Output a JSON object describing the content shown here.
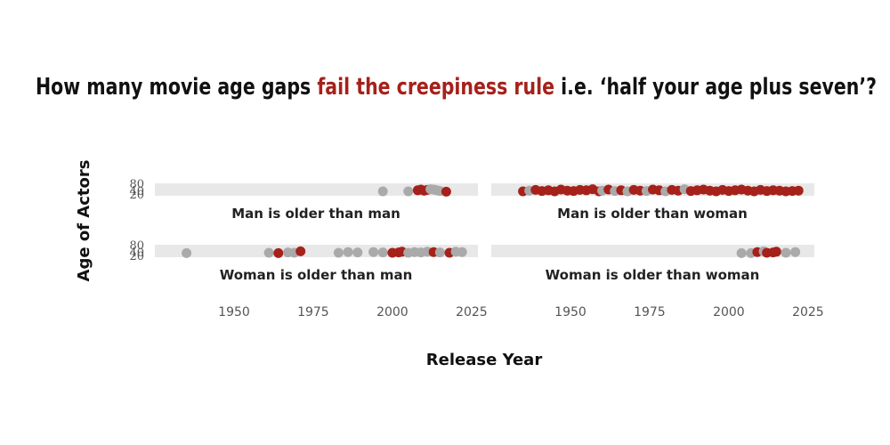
{
  "chart_data": {
    "type": "scatter",
    "title_parts": [
      {
        "text": "How many movie age gaps ",
        "highlight": false
      },
      {
        "text": "fail the creepiness rule",
        "highlight": true
      },
      {
        "text": " i.e. ‘half your age plus seven’?",
        "highlight": false
      }
    ],
    "xlabel": "Release  Year",
    "ylabel": "Age of Actors",
    "xlim": [
      1925,
      2027
    ],
    "ylim": [
      15,
      85
    ],
    "x_ticks": [
      1950,
      1975,
      2000,
      2025
    ],
    "y_ticks": [
      20,
      40,
      80
    ],
    "grid": false,
    "colors": {
      "fail": "#a5211a",
      "pass": "#aaaaaa",
      "panel": "#e8e8e8",
      "highlight": "#a5211a"
    },
    "panels": [
      {
        "label": "Man is older than man",
        "points": [
          {
            "x": 1997,
            "y": 40,
            "fail": false
          },
          {
            "x": 2005,
            "y": 40,
            "fail": false
          },
          {
            "x": 2008,
            "y": 46,
            "fail": true
          },
          {
            "x": 2009,
            "y": 50,
            "fail": true
          },
          {
            "x": 2010,
            "y": 44,
            "fail": true
          },
          {
            "x": 2011,
            "y": 48,
            "fail": true
          },
          {
            "x": 2012,
            "y": 52,
            "fail": false
          },
          {
            "x": 2013,
            "y": 50,
            "fail": false
          },
          {
            "x": 2014,
            "y": 46,
            "fail": false
          },
          {
            "x": 2015,
            "y": 42,
            "fail": false
          },
          {
            "x": 2017,
            "y": 38,
            "fail": true
          }
        ]
      },
      {
        "label": "Man is older than woman",
        "points": [
          {
            "x": 1935,
            "y": 40,
            "fail": true
          },
          {
            "x": 1937,
            "y": 44,
            "fail": false
          },
          {
            "x": 1939,
            "y": 48,
            "fail": true
          },
          {
            "x": 1941,
            "y": 42,
            "fail": true
          },
          {
            "x": 1943,
            "y": 46,
            "fail": true
          },
          {
            "x": 1945,
            "y": 40,
            "fail": true
          },
          {
            "x": 1947,
            "y": 50,
            "fail": true
          },
          {
            "x": 1949,
            "y": 44,
            "fail": true
          },
          {
            "x": 1951,
            "y": 42,
            "fail": true
          },
          {
            "x": 1953,
            "y": 48,
            "fail": true
          },
          {
            "x": 1955,
            "y": 46,
            "fail": true
          },
          {
            "x": 1957,
            "y": 52,
            "fail": true
          },
          {
            "x": 1959,
            "y": 40,
            "fail": true
          },
          {
            "x": 1960,
            "y": 44,
            "fail": false
          },
          {
            "x": 1962,
            "y": 50,
            "fail": true
          },
          {
            "x": 1964,
            "y": 42,
            "fail": false
          },
          {
            "x": 1966,
            "y": 46,
            "fail": true
          },
          {
            "x": 1968,
            "y": 40,
            "fail": false
          },
          {
            "x": 1970,
            "y": 48,
            "fail": true
          },
          {
            "x": 1972,
            "y": 44,
            "fail": true
          },
          {
            "x": 1974,
            "y": 42,
            "fail": false
          },
          {
            "x": 1976,
            "y": 50,
            "fail": true
          },
          {
            "x": 1978,
            "y": 46,
            "fail": true
          },
          {
            "x": 1980,
            "y": 40,
            "fail": false
          },
          {
            "x": 1982,
            "y": 48,
            "fail": true
          },
          {
            "x": 1984,
            "y": 44,
            "fail": true
          },
          {
            "x": 1986,
            "y": 52,
            "fail": false
          },
          {
            "x": 1988,
            "y": 42,
            "fail": true
          },
          {
            "x": 1990,
            "y": 46,
            "fail": true
          },
          {
            "x": 1992,
            "y": 50,
            "fail": true
          },
          {
            "x": 1994,
            "y": 44,
            "fail": true
          },
          {
            "x": 1996,
            "y": 40,
            "fail": true
          },
          {
            "x": 1998,
            "y": 48,
            "fail": true
          },
          {
            "x": 2000,
            "y": 42,
            "fail": true
          },
          {
            "x": 2002,
            "y": 46,
            "fail": true
          },
          {
            "x": 2004,
            "y": 50,
            "fail": true
          },
          {
            "x": 2006,
            "y": 44,
            "fail": true
          },
          {
            "x": 2008,
            "y": 40,
            "fail": true
          },
          {
            "x": 2010,
            "y": 48,
            "fail": true
          },
          {
            "x": 2012,
            "y": 42,
            "fail": true
          },
          {
            "x": 2014,
            "y": 46,
            "fail": true
          },
          {
            "x": 2016,
            "y": 44,
            "fail": true
          },
          {
            "x": 2018,
            "y": 40,
            "fail": true
          },
          {
            "x": 2020,
            "y": 42,
            "fail": true
          },
          {
            "x": 2022,
            "y": 44,
            "fail": true
          }
        ]
      },
      {
        "label": "Woman is older than man",
        "points": [
          {
            "x": 1935,
            "y": 38,
            "fail": false
          },
          {
            "x": 1961,
            "y": 40,
            "fail": false
          },
          {
            "x": 1964,
            "y": 38,
            "fail": true
          },
          {
            "x": 1967,
            "y": 42,
            "fail": false
          },
          {
            "x": 1969,
            "y": 40,
            "fail": false
          },
          {
            "x": 1971,
            "y": 48,
            "fail": true
          },
          {
            "x": 1983,
            "y": 40,
            "fail": false
          },
          {
            "x": 1986,
            "y": 44,
            "fail": false
          },
          {
            "x": 1989,
            "y": 42,
            "fail": false
          },
          {
            "x": 1994,
            "y": 44,
            "fail": false
          },
          {
            "x": 1997,
            "y": 42,
            "fail": false
          },
          {
            "x": 2000,
            "y": 40,
            "fail": true
          },
          {
            "x": 2002,
            "y": 42,
            "fail": true
          },
          {
            "x": 2003,
            "y": 46,
            "fail": true
          },
          {
            "x": 2005,
            "y": 40,
            "fail": false
          },
          {
            "x": 2007,
            "y": 44,
            "fail": false
          },
          {
            "x": 2009,
            "y": 42,
            "fail": false
          },
          {
            "x": 2011,
            "y": 46,
            "fail": false
          },
          {
            "x": 2013,
            "y": 44,
            "fail": true
          },
          {
            "x": 2015,
            "y": 42,
            "fail": false
          },
          {
            "x": 2018,
            "y": 40,
            "fail": true
          },
          {
            "x": 2020,
            "y": 46,
            "fail": false
          },
          {
            "x": 2022,
            "y": 44,
            "fail": false
          }
        ]
      },
      {
        "label": "Woman is older than woman",
        "points": [
          {
            "x": 2004,
            "y": 38,
            "fail": false
          },
          {
            "x": 2007,
            "y": 38,
            "fail": false
          },
          {
            "x": 2009,
            "y": 44,
            "fail": true
          },
          {
            "x": 2011,
            "y": 48,
            "fail": false
          },
          {
            "x": 2012,
            "y": 40,
            "fail": true
          },
          {
            "x": 2014,
            "y": 42,
            "fail": true
          },
          {
            "x": 2015,
            "y": 46,
            "fail": true
          },
          {
            "x": 2018,
            "y": 40,
            "fail": false
          },
          {
            "x": 2021,
            "y": 44,
            "fail": false
          }
        ]
      }
    ]
  }
}
